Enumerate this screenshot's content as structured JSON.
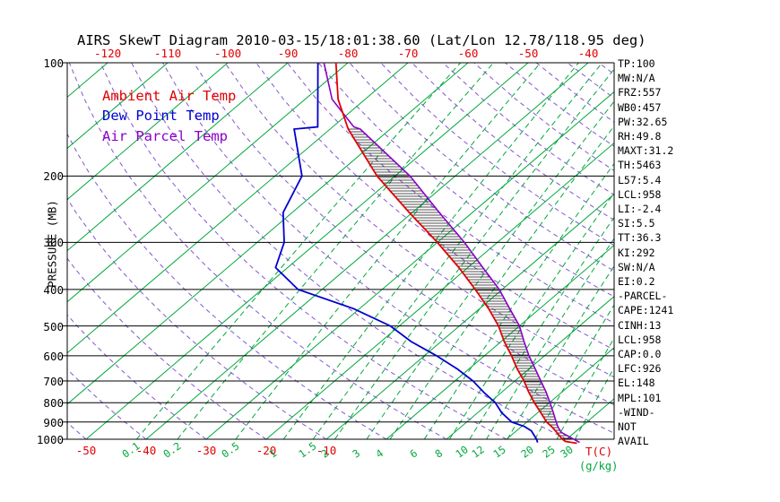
{
  "title": "AIRS SkewT Diagram 2010-03-15/18:01:38.60 (Lat/Lon 12.78/118.95 deg)",
  "colors": {
    "isotherm_green": "#00a83c",
    "mixratio_green": "#00a83c",
    "adiabat_violet": "#8455d0",
    "ambient_red": "#e10000",
    "dew_blue": "#0000d0",
    "parcel_violet": "#8a00c8",
    "axis_black": "#000000",
    "hatch_black": "#1a1a1a"
  },
  "legend": {
    "ambient": "Ambient Air Temp",
    "dew": "Dew Point Temp",
    "parcel": "Air Parcel Temp"
  },
  "axes": {
    "y_label": "PRESSURE (MB)",
    "pressure_ticks": [
      100,
      200,
      300,
      400,
      500,
      600,
      700,
      800,
      900,
      1000
    ],
    "top_temp_labels": [
      -120,
      -110,
      -100,
      -90,
      -80,
      -70,
      -60,
      -50,
      -40
    ],
    "bottom_temp_labels": [
      -50,
      -40,
      -30,
      -20,
      -10
    ],
    "x_unit_label": "T(C)",
    "mix_unit_label": "(g/kg)"
  },
  "panel": {
    "lines": [
      "TP:100",
      "MW:N/A",
      "FRZ:557",
      "WB0:457",
      "PW:32.65",
      "RH:49.8",
      "MAXT:31.2",
      "TH:5463",
      "L57:5.4",
      "LCL:958",
      "LI:-2.4",
      "SI:5.5",
      "TT:36.3",
      "KI:292",
      "SW:N/A",
      "EI:0.2",
      "-PARCEL-",
      "CAPE:1241",
      "CINH:13",
      "LCL:958",
      "CAP:0.0",
      "LFC:926",
      "EL:148",
      "MPL:101",
      "-WIND-",
      "NOT",
      "AVAIL"
    ]
  },
  "chart_data": {
    "type": "line",
    "title": "AIRS SkewT Diagram 2010-03-15/18:01:38.60 (Lat/Lon 12.78/118.95 deg)",
    "xlabel": "Temperature (C), skewed",
    "ylabel": "Pressure (MB), log scale",
    "pressure_range": [
      100,
      1000
    ],
    "temp_axis_bottom_range": [
      -53,
      38
    ],
    "grid": "skew-t background: solid isotherms, dashed mixing-ratio lines, dashed dry adiabats, horizontal isobars",
    "background": {
      "isotherms_c": {
        "min": -140,
        "max": 30,
        "step": 10
      },
      "dry_adiabats_theta_c": {
        "min": -50,
        "max": 180,
        "step": 10
      },
      "mixing_ratio_g_kg": [
        0.1,
        0.2,
        0.5,
        1,
        1.5,
        2,
        3,
        4,
        6,
        8,
        10,
        12,
        15,
        20,
        25,
        30
      ]
    },
    "series": [
      {
        "name": "Ambient Air Temp",
        "color": "#e10000",
        "points": [
          [
            1025,
            32.5
          ],
          [
            1013,
            30.2
          ],
          [
            1000,
            29.3
          ],
          [
            950,
            26.5
          ],
          [
            925,
            25.0
          ],
          [
            900,
            23.3
          ],
          [
            850,
            20.5
          ],
          [
            800,
            17.5
          ],
          [
            750,
            14.5
          ],
          [
            700,
            11.5
          ],
          [
            650,
            8.0
          ],
          [
            600,
            4.5
          ],
          [
            550,
            0.5
          ],
          [
            500,
            -3.5
          ],
          [
            450,
            -8.5
          ],
          [
            400,
            -14.5
          ],
          [
            350,
            -21.5
          ],
          [
            300,
            -30.0
          ],
          [
            250,
            -40.5
          ],
          [
            200,
            -53.0
          ],
          [
            150,
            -67.0
          ],
          [
            125,
            -74.5
          ],
          [
            100,
            -82.0
          ]
        ]
      },
      {
        "name": "Dew Point Temp",
        "color": "#0000d0",
        "points": [
          [
            1020,
            25.8
          ],
          [
            1000,
            25.0
          ],
          [
            950,
            22.5
          ],
          [
            925,
            20.5
          ],
          [
            900,
            17.5
          ],
          [
            850,
            14.0
          ],
          [
            800,
            11.0
          ],
          [
            750,
            7.0
          ],
          [
            700,
            3.0
          ],
          [
            650,
            -2.0
          ],
          [
            600,
            -8.0
          ],
          [
            550,
            -15.0
          ],
          [
            500,
            -21.5
          ],
          [
            450,
            -31.0
          ],
          [
            400,
            -44.0
          ],
          [
            350,
            -52.0
          ],
          [
            300,
            -55.5
          ],
          [
            250,
            -61.5
          ],
          [
            200,
            -65.5
          ],
          [
            150,
            -76.0
          ],
          [
            148,
            -72.5
          ],
          [
            100,
            -85.0
          ]
        ]
      },
      {
        "name": "Air Parcel Temp",
        "color": "#8a00c8",
        "points": [
          [
            1020,
            32.8
          ],
          [
            1000,
            31.2
          ],
          [
            958,
            27.7
          ],
          [
            926,
            26.1
          ],
          [
            900,
            24.9
          ],
          [
            850,
            22.6
          ],
          [
            800,
            20.1
          ],
          [
            750,
            17.4
          ],
          [
            700,
            14.3
          ],
          [
            650,
            11.0
          ],
          [
            600,
            7.4
          ],
          [
            550,
            3.8
          ],
          [
            500,
            0.0
          ],
          [
            450,
            -5.0
          ],
          [
            400,
            -10.5
          ],
          [
            350,
            -17.5
          ],
          [
            300,
            -25.5
          ],
          [
            250,
            -35.5
          ],
          [
            200,
            -47.5
          ],
          [
            150,
            -65.0
          ],
          [
            148,
            -66.5
          ],
          [
            125,
            -75.5
          ],
          [
            100,
            -84.0
          ]
        ]
      }
    ],
    "cape_hatch": {
      "between": [
        "Air Parcel Temp",
        "Ambient Air Temp"
      ],
      "pressure_top": 148,
      "pressure_bottom": 1000
    }
  }
}
